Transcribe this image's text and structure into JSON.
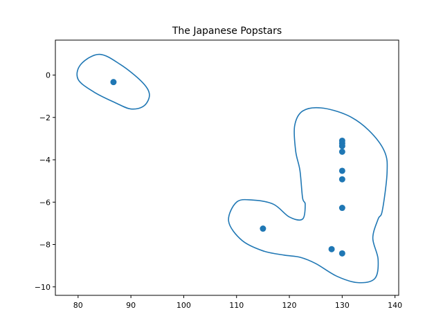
{
  "chart_data": {
    "type": "scatter",
    "title": "The Japanese Popstars",
    "xlabel": "",
    "ylabel": "",
    "xlim": [
      75.7,
      140.7
    ],
    "ylim": [
      -10.4,
      1.65
    ],
    "xticks": [
      80,
      90,
      100,
      110,
      120,
      130,
      140
    ],
    "yticks": [
      0,
      -2,
      -4,
      -6,
      -8,
      -10
    ],
    "grid": false,
    "color": "#1f77b4",
    "points": [
      {
        "x": 86.7,
        "y": -0.33
      },
      {
        "x": 115.0,
        "y": -7.25
      },
      {
        "x": 128.0,
        "y": -8.22
      },
      {
        "x": 130.0,
        "y": -8.42
      },
      {
        "x": 130.0,
        "y": -6.27
      },
      {
        "x": 130.0,
        "y": -4.92
      },
      {
        "x": 130.0,
        "y": -4.52
      },
      {
        "x": 130.0,
        "y": -3.62
      },
      {
        "x": 130.0,
        "y": -3.35
      },
      {
        "x": 130.0,
        "y": -3.22
      },
      {
        "x": 130.0,
        "y": -3.1
      }
    ],
    "contours": [
      {
        "name": "",
        "path": [
          [
            84.0,
            0.98
          ],
          [
            88.0,
            0.5
          ],
          [
            92.0,
            -0.3
          ],
          [
            93.5,
            -0.9
          ],
          [
            92.5,
            -1.45
          ],
          [
            90.0,
            -1.6
          ],
          [
            87.0,
            -1.3
          ],
          [
            83.0,
            -0.8
          ],
          [
            80.0,
            -0.2
          ],
          [
            80.5,
            0.5
          ],
          [
            84.0,
            0.98
          ]
        ]
      },
      {
        "name": "",
        "path": [
          [
            126.0,
            -1.55
          ],
          [
            131.0,
            -1.9
          ],
          [
            135.0,
            -2.6
          ],
          [
            138.0,
            -3.6
          ],
          [
            138.5,
            -4.6
          ],
          [
            137.6,
            -6.4
          ],
          [
            136.8,
            -6.8
          ],
          [
            135.8,
            -7.7
          ],
          [
            136.8,
            -8.7
          ],
          [
            136.2,
            -9.6
          ],
          [
            133.0,
            -9.8
          ],
          [
            129.0,
            -9.5
          ],
          [
            125.0,
            -8.9
          ],
          [
            122.0,
            -8.6
          ],
          [
            119.0,
            -8.5
          ],
          [
            115.0,
            -8.3
          ],
          [
            111.0,
            -7.8
          ],
          [
            108.5,
            -6.9
          ],
          [
            110.0,
            -6.0
          ],
          [
            113.0,
            -5.9
          ],
          [
            117.0,
            -6.1
          ],
          [
            120.0,
            -6.7
          ],
          [
            122.5,
            -6.8
          ],
          [
            123.0,
            -6.1
          ],
          [
            122.5,
            -5.8
          ],
          [
            122.0,
            -4.5
          ],
          [
            121.2,
            -3.6
          ],
          [
            121.0,
            -2.4
          ],
          [
            122.5,
            -1.7
          ],
          [
            126.0,
            -1.55
          ]
        ]
      }
    ]
  }
}
